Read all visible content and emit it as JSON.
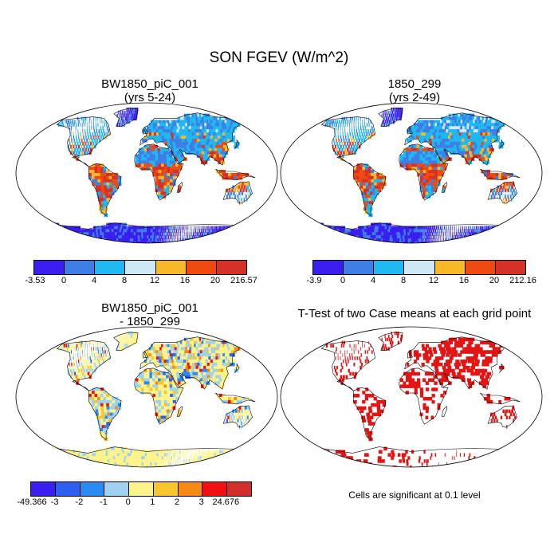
{
  "main_title": "SON FGEV (W/m^2)",
  "panels": [
    {
      "title_line1": "BW1850_piC_001",
      "title_line2": "(yrs 5-24)"
    },
    {
      "title_line1": "1850_299",
      "title_line2": "(yrs 2-49)"
    },
    {
      "title_line1": "BW1850_piC_001",
      "title_line2": "- 1850_299"
    },
    {
      "title_line1": "T-Test of two Case means at each grid point",
      "title_line2": ""
    }
  ],
  "colorbar1": {
    "colors": [
      "#3b1ff0",
      "#3f7fe5",
      "#1fb8f0",
      "#cfe8f5",
      "#f7b92a",
      "#f04a10",
      "#d63127"
    ],
    "labels": [
      "-3.53",
      "0",
      "4",
      "8",
      "12",
      "16",
      "20",
      "216.57"
    ]
  },
  "colorbar2": {
    "colors": [
      "#3b1ff0",
      "#3f7fe5",
      "#1fb8f0",
      "#cfe8f5",
      "#f7b92a",
      "#f04a10",
      "#d63127"
    ],
    "labels": [
      "-3.9",
      "0",
      "4",
      "8",
      "12",
      "16",
      "20",
      "212.16"
    ]
  },
  "colorbar3": {
    "colors": [
      "#3b1ff0",
      "#2f5ff0",
      "#2a8cf0",
      "#9ed2f0",
      "#fcf38a",
      "#f7c62a",
      "#f58a14",
      "#f01010",
      "#d22f2a"
    ],
    "labels": [
      "-49.366",
      "-3",
      "-2",
      "-1",
      "0",
      "1",
      "2",
      "3",
      "24.676"
    ]
  },
  "note": "Cells are significant at 0.1 level"
}
